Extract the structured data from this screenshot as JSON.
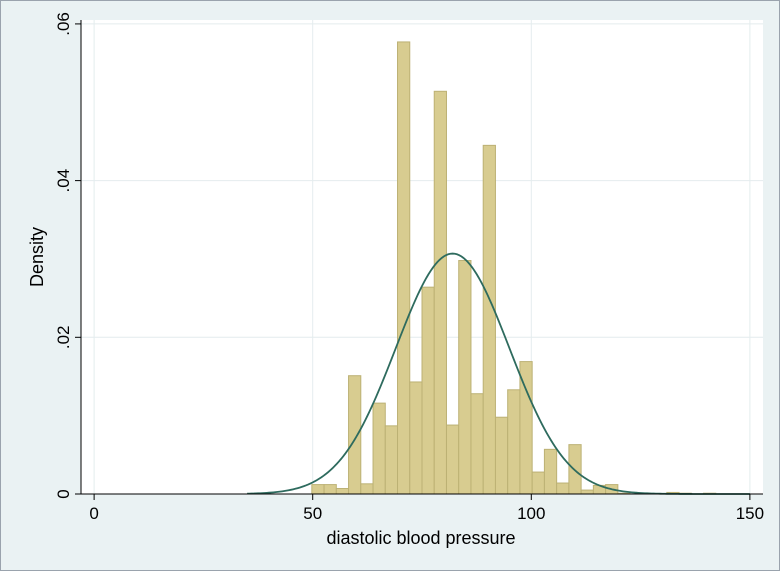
{
  "chart_data": {
    "type": "bar",
    "subtype": "histogram-with-normal-density",
    "xlabel": "diastolic blood pressure",
    "ylabel": "Density",
    "xlim": [
      -3,
      153
    ],
    "ylim": [
      0,
      0.0605
    ],
    "x_ticks": [
      0,
      50,
      100,
      150
    ],
    "x_tick_labels": [
      "0",
      "50",
      "100",
      "150"
    ],
    "y_ticks": [
      0,
      0.02,
      0.04,
      0.06
    ],
    "y_tick_labels": [
      "0",
      ".02",
      ".04",
      ".06"
    ],
    "grid": true,
    "bin_width": 2.8,
    "bins": [
      {
        "x0": 49.8,
        "value": 0.0012
      },
      {
        "x0": 52.6,
        "value": 0.0012
      },
      {
        "x0": 55.4,
        "value": 0.0007
      },
      {
        "x0": 58.2,
        "value": 0.0151
      },
      {
        "x0": 61.0,
        "value": 0.0013
      },
      {
        "x0": 63.8,
        "value": 0.0116
      },
      {
        "x0": 66.6,
        "value": 0.0087
      },
      {
        "x0": 69.4,
        "value": 0.0577
      },
      {
        "x0": 72.2,
        "value": 0.0143
      },
      {
        "x0": 75.0,
        "value": 0.0264
      },
      {
        "x0": 77.8,
        "value": 0.0514
      },
      {
        "x0": 80.6,
        "value": 0.0088
      },
      {
        "x0": 83.4,
        "value": 0.0298
      },
      {
        "x0": 86.2,
        "value": 0.0128
      },
      {
        "x0": 89.0,
        "value": 0.0445
      },
      {
        "x0": 91.8,
        "value": 0.0098
      },
      {
        "x0": 94.6,
        "value": 0.0133
      },
      {
        "x0": 97.4,
        "value": 0.0169
      },
      {
        "x0": 100.2,
        "value": 0.0028
      },
      {
        "x0": 103.0,
        "value": 0.0057
      },
      {
        "x0": 105.8,
        "value": 0.0014
      },
      {
        "x0": 108.6,
        "value": 0.0063
      },
      {
        "x0": 111.4,
        "value": 0.0005
      },
      {
        "x0": 114.2,
        "value": 0.0011
      },
      {
        "x0": 117.0,
        "value": 0.0012
      },
      {
        "x0": 119.8,
        "value": 0.0001
      },
      {
        "x0": 131.0,
        "value": 0.0002
      },
      {
        "x0": 133.8,
        "value": 0.0001
      },
      {
        "x0": 139.4,
        "value": 0.0001
      }
    ],
    "normal_curve": {
      "mean": 82,
      "sd": 13,
      "x_range": [
        35,
        150
      ]
    },
    "colors": {
      "bar_fill": "#d8cc90",
      "bar_stroke": "#bcb174",
      "curve": "#2e6b5e",
      "background": "#eaf2f3",
      "plot_area": "#ffffff",
      "grid": "#e4ecee"
    }
  }
}
